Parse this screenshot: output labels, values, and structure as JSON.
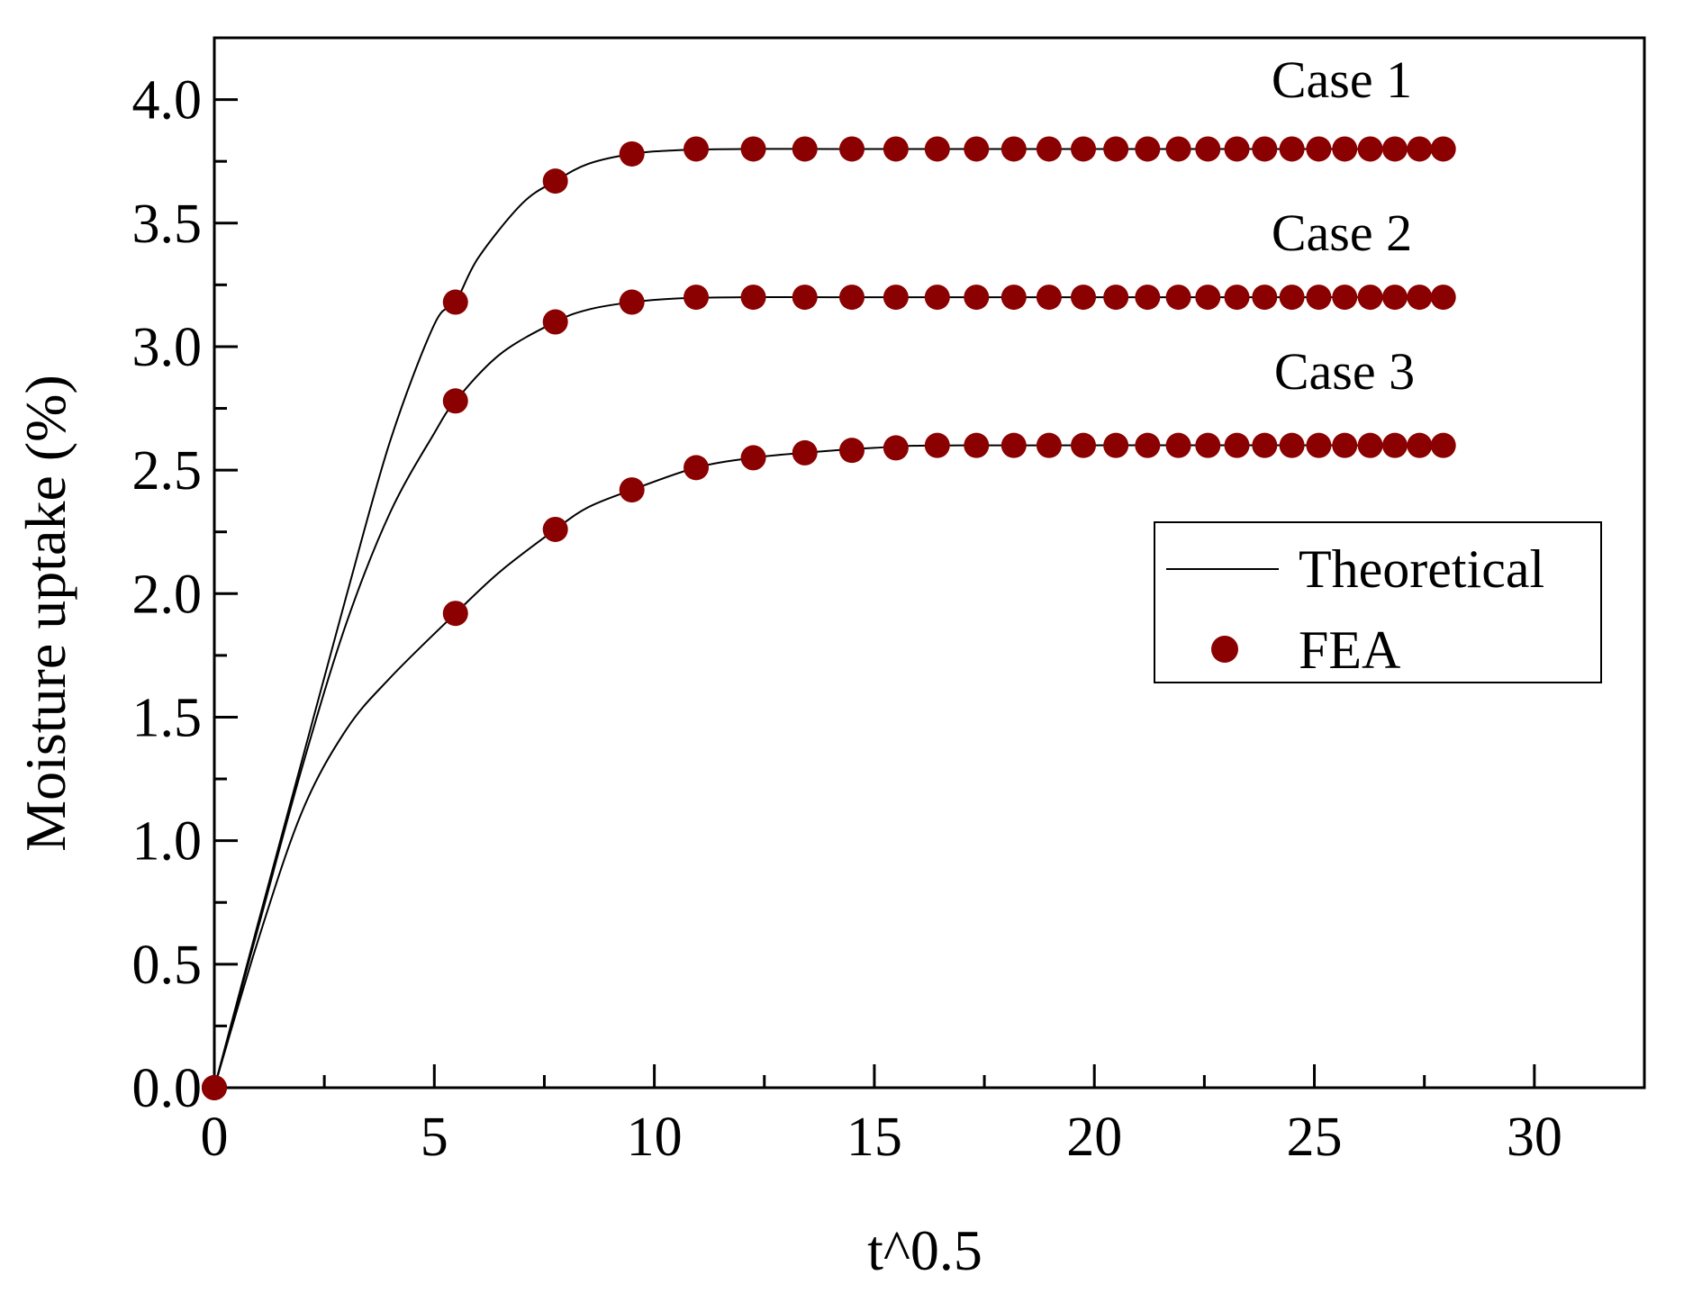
{
  "chart_data": {
    "type": "line",
    "title": "",
    "xlabel": "t^0.5",
    "ylabel": "Moisture uptake (%)",
    "xlim": [
      0,
      32.5
    ],
    "ylim": [
      0,
      4.25
    ],
    "x_ticks": [
      "0",
      "5",
      "10",
      "15",
      "20",
      "25",
      "30"
    ],
    "y_ticks": [
      "0.0",
      "0.5",
      "1.0",
      "1.5",
      "2.0",
      "2.5",
      "3.0",
      "3.5",
      "4.0"
    ],
    "grid": false,
    "legend_position": "right",
    "legend": {
      "theoretical": "Theoretical",
      "fea": "FEA"
    },
    "colors": {
      "line": "#000000",
      "marker": "#8b0000"
    },
    "annotations": [
      "Case 1",
      "Case 2",
      "Case 3"
    ],
    "fea_x": [
      0,
      5.48,
      7.75,
      9.49,
      10.95,
      12.25,
      13.42,
      14.49,
      15.49,
      16.43,
      17.32,
      18.17,
      18.97,
      19.75,
      20.49,
      21.21,
      21.91,
      22.58,
      23.24,
      23.87,
      24.49,
      25.1,
      25.69,
      26.27,
      26.83,
      27.39,
      27.93
    ],
    "series": [
      {
        "label": "Case 1",
        "saturation": 3.8,
        "fea_y": [
          0,
          3.18,
          3.67,
          3.78,
          3.8,
          3.8,
          3.8,
          3.8,
          3.8,
          3.8,
          3.8,
          3.8,
          3.8,
          3.8,
          3.8,
          3.8,
          3.8,
          3.8,
          3.8,
          3.8,
          3.8,
          3.8,
          3.8,
          3.8,
          3.8,
          3.8,
          3.8
        ],
        "theory_x": [
          0,
          1,
          2,
          3,
          4,
          5,
          5.48,
          6,
          7,
          7.75,
          8.5,
          9.49,
          10.5,
          12,
          14,
          28
        ],
        "theory_y": [
          0,
          0.67,
          1.33,
          1.99,
          2.62,
          3.09,
          3.18,
          3.36,
          3.58,
          3.67,
          3.74,
          3.78,
          3.795,
          3.8,
          3.8,
          3.8
        ]
      },
      {
        "label": "Case 2",
        "saturation": 3.2,
        "fea_y": [
          0,
          2.78,
          3.1,
          3.18,
          3.2,
          3.2,
          3.2,
          3.2,
          3.2,
          3.2,
          3.2,
          3.2,
          3.2,
          3.2,
          3.2,
          3.2,
          3.2,
          3.2,
          3.2,
          3.2,
          3.2,
          3.2,
          3.2,
          3.2,
          3.2,
          3.2,
          3.2
        ],
        "theory_x": [
          0,
          1,
          2,
          3,
          4,
          5,
          5.48,
          6.5,
          7.75,
          8.5,
          9.49,
          10.5,
          12,
          14,
          28
        ],
        "theory_y": [
          0,
          0.65,
          1.3,
          1.88,
          2.33,
          2.65,
          2.78,
          2.97,
          3.1,
          3.15,
          3.18,
          3.195,
          3.2,
          3.2,
          3.2
        ]
      },
      {
        "label": "Case 3",
        "saturation": 2.6,
        "fea_y": [
          0,
          1.92,
          2.26,
          2.42,
          2.51,
          2.55,
          2.57,
          2.58,
          2.59,
          2.6,
          2.6,
          2.6,
          2.6,
          2.6,
          2.6,
          2.6,
          2.6,
          2.6,
          2.6,
          2.6,
          2.6,
          2.6,
          2.6,
          2.6,
          2.6,
          2.6,
          2.6
        ],
        "theory_x": [
          0,
          1,
          2,
          3,
          4,
          5.48,
          6.5,
          7.75,
          8.5,
          9.49,
          10.95,
          12.25,
          13.42,
          15,
          17,
          28
        ],
        "theory_y": [
          0,
          0.6,
          1.12,
          1.45,
          1.66,
          1.92,
          2.09,
          2.26,
          2.35,
          2.42,
          2.51,
          2.55,
          2.57,
          2.59,
          2.6,
          2.6
        ]
      }
    ]
  }
}
